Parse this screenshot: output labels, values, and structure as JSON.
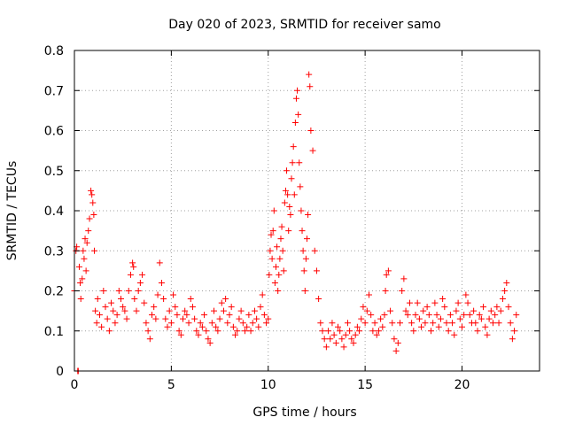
{
  "chart_data": {
    "type": "scatter",
    "title": "Day 020 of 2023, SRMTID for receiver samo",
    "xlabel": "GPS time / hours",
    "ylabel": "SRMTID / TECUs",
    "xlim": [
      0,
      24
    ],
    "ylim": [
      0,
      0.8
    ],
    "x_ticks": [
      0,
      5,
      10,
      15,
      20
    ],
    "x_tick_labels": [
      "0",
      "5",
      "10",
      "15",
      "20"
    ],
    "y_ticks": [
      0,
      0.1,
      0.2,
      0.3,
      0.4,
      0.5,
      0.6,
      0.7,
      0.8
    ],
    "y_tick_labels": [
      "0",
      "0.1",
      "0.2",
      "0.3",
      "0.4",
      "0.5",
      "0.6",
      "0.7",
      "0.8"
    ],
    "grid": true,
    "marker": "plus",
    "marker_color": "#ff0000",
    "series": [
      {
        "name": "SRMTID",
        "x": [
          0.0,
          0.08,
          0.12,
          0.17,
          0.2,
          0.25,
          0.3,
          0.33,
          0.4,
          0.45,
          0.5,
          0.55,
          0.6,
          0.65,
          0.72,
          0.78,
          0.85,
          0.9,
          0.95,
          1.0,
          1.03,
          1.08,
          1.15,
          1.2,
          1.3,
          1.4,
          1.5,
          1.6,
          1.7,
          1.8,
          1.9,
          2.0,
          2.1,
          2.2,
          2.3,
          2.4,
          2.5,
          2.6,
          2.7,
          2.8,
          2.9,
          3.0,
          3.05,
          3.1,
          3.2,
          3.3,
          3.4,
          3.5,
          3.6,
          3.7,
          3.8,
          3.9,
          4.0,
          4.1,
          4.2,
          4.3,
          4.4,
          4.5,
          4.6,
          4.7,
          4.8,
          4.9,
          5.0,
          5.1,
          5.2,
          5.3,
          5.4,
          5.5,
          5.6,
          5.7,
          5.8,
          5.9,
          6.0,
          6.1,
          6.2,
          6.3,
          6.4,
          6.5,
          6.6,
          6.7,
          6.8,
          6.9,
          7.0,
          7.1,
          7.2,
          7.3,
          7.4,
          7.5,
          7.6,
          7.7,
          7.8,
          7.9,
          8.0,
          8.1,
          8.2,
          8.3,
          8.4,
          8.5,
          8.6,
          8.7,
          8.8,
          8.9,
          9.0,
          9.1,
          9.2,
          9.3,
          9.4,
          9.5,
          9.6,
          9.7,
          9.8,
          9.9,
          10.0,
          10.05,
          10.1,
          10.15,
          10.2,
          10.25,
          10.3,
          10.35,
          10.4,
          10.45,
          10.5,
          10.55,
          10.6,
          10.65,
          10.7,
          10.75,
          10.8,
          10.85,
          10.9,
          10.95,
          11.0,
          11.05,
          11.1,
          11.15,
          11.2,
          11.25,
          11.3,
          11.35,
          11.4,
          11.45,
          11.5,
          11.55,
          11.6,
          11.65,
          11.7,
          11.75,
          11.8,
          11.85,
          11.9,
          11.95,
          12.0,
          12.05,
          12.1,
          12.15,
          12.2,
          12.3,
          12.4,
          12.5,
          12.6,
          12.7,
          12.8,
          12.9,
          13.0,
          13.1,
          13.2,
          13.3,
          13.4,
          13.5,
          13.6,
          13.7,
          13.8,
          13.9,
          14.0,
          14.1,
          14.2,
          14.3,
          14.4,
          14.5,
          14.6,
          14.7,
          14.8,
          14.9,
          15.0,
          15.1,
          15.2,
          15.3,
          15.4,
          15.5,
          15.6,
          15.7,
          15.8,
          15.9,
          16.0,
          16.05,
          16.1,
          16.2,
          16.3,
          16.4,
          16.5,
          16.6,
          16.7,
          16.8,
          16.9,
          17.0,
          17.1,
          17.2,
          17.3,
          17.4,
          17.5,
          17.6,
          17.7,
          17.8,
          17.9,
          18.0,
          18.1,
          18.2,
          18.3,
          18.4,
          18.5,
          18.6,
          18.7,
          18.8,
          18.9,
          19.0,
          19.1,
          19.2,
          19.3,
          19.4,
          19.5,
          19.6,
          19.7,
          19.8,
          19.9,
          20.0,
          20.1,
          20.2,
          20.3,
          20.4,
          20.5,
          20.6,
          20.7,
          20.8,
          20.9,
          21.0,
          21.1,
          21.2,
          21.3,
          21.4,
          21.5,
          21.6,
          21.7,
          21.8,
          21.9,
          22.0,
          22.1,
          22.2,
          22.3,
          22.4,
          22.5,
          22.6,
          22.7,
          22.8
        ],
        "y": [
          0.2,
          0.3,
          0.31,
          0.0,
          0.0,
          0.26,
          0.22,
          0.18,
          0.23,
          0.3,
          0.28,
          0.33,
          0.25,
          0.32,
          0.35,
          0.38,
          0.45,
          0.44,
          0.42,
          0.39,
          0.3,
          0.15,
          0.12,
          0.18,
          0.14,
          0.11,
          0.2,
          0.16,
          0.13,
          0.1,
          0.17,
          0.15,
          0.12,
          0.14,
          0.2,
          0.18,
          0.16,
          0.15,
          0.13,
          0.2,
          0.24,
          0.27,
          0.26,
          0.18,
          0.15,
          0.2,
          0.22,
          0.24,
          0.17,
          0.12,
          0.1,
          0.08,
          0.14,
          0.16,
          0.13,
          0.19,
          0.27,
          0.22,
          0.18,
          0.13,
          0.11,
          0.15,
          0.12,
          0.19,
          0.16,
          0.14,
          0.1,
          0.09,
          0.13,
          0.15,
          0.14,
          0.12,
          0.18,
          0.16,
          0.13,
          0.1,
          0.09,
          0.12,
          0.11,
          0.14,
          0.1,
          0.08,
          0.07,
          0.12,
          0.15,
          0.11,
          0.1,
          0.13,
          0.17,
          0.15,
          0.18,
          0.12,
          0.14,
          0.16,
          0.11,
          0.09,
          0.1,
          0.13,
          0.15,
          0.12,
          0.1,
          0.11,
          0.14,
          0.1,
          0.12,
          0.15,
          0.13,
          0.11,
          0.16,
          0.19,
          0.14,
          0.12,
          0.13,
          0.24,
          0.3,
          0.34,
          0.28,
          0.35,
          0.4,
          0.22,
          0.26,
          0.31,
          0.2,
          0.24,
          0.28,
          0.33,
          0.36,
          0.3,
          0.25,
          0.42,
          0.45,
          0.5,
          0.44,
          0.35,
          0.41,
          0.39,
          0.48,
          0.52,
          0.56,
          0.44,
          0.62,
          0.68,
          0.7,
          0.64,
          0.52,
          0.46,
          0.4,
          0.35,
          0.3,
          0.25,
          0.2,
          0.28,
          0.33,
          0.39,
          0.74,
          0.71,
          0.6,
          0.55,
          0.3,
          0.25,
          0.18,
          0.12,
          0.1,
          0.08,
          0.06,
          0.1,
          0.08,
          0.12,
          0.09,
          0.07,
          0.11,
          0.1,
          0.08,
          0.06,
          0.09,
          0.12,
          0.1,
          0.08,
          0.07,
          0.09,
          0.11,
          0.1,
          0.13,
          0.16,
          0.12,
          0.15,
          0.19,
          0.14,
          0.1,
          0.12,
          0.09,
          0.1,
          0.13,
          0.11,
          0.14,
          0.2,
          0.24,
          0.25,
          0.15,
          0.12,
          0.08,
          0.05,
          0.07,
          0.12,
          0.2,
          0.23,
          0.15,
          0.14,
          0.17,
          0.12,
          0.1,
          0.14,
          0.17,
          0.13,
          0.11,
          0.15,
          0.12,
          0.16,
          0.14,
          0.1,
          0.12,
          0.17,
          0.14,
          0.11,
          0.13,
          0.18,
          0.16,
          0.12,
          0.1,
          0.14,
          0.12,
          0.09,
          0.15,
          0.17,
          0.13,
          0.11,
          0.14,
          0.19,
          0.17,
          0.14,
          0.12,
          0.15,
          0.12,
          0.1,
          0.14,
          0.13,
          0.16,
          0.11,
          0.09,
          0.13,
          0.15,
          0.12,
          0.14,
          0.16,
          0.12,
          0.15,
          0.18,
          0.2,
          0.22,
          0.16,
          0.12,
          0.08,
          0.1,
          0.14
        ]
      }
    ]
  }
}
